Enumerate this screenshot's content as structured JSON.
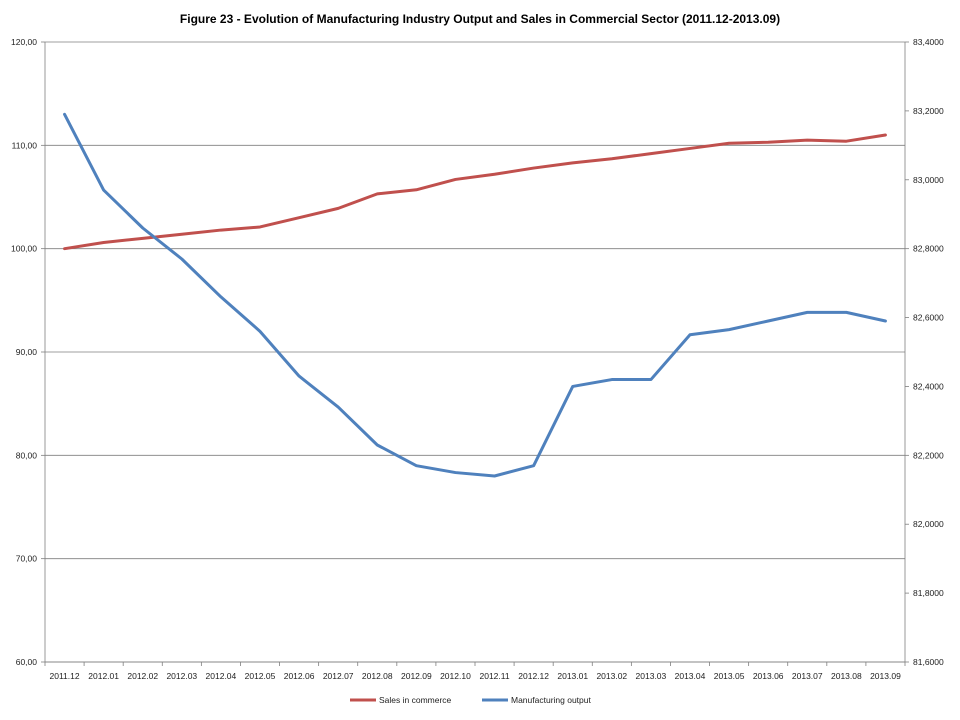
{
  "chart_data": {
    "type": "line",
    "title": "Figure 23 - Evolution of Manufacturing Industry Output and Sales in Commercial Sector (2011.12-2013.09)",
    "categories": [
      "2011.12",
      "2012.01",
      "2012.02",
      "2012.03",
      "2012.04",
      "2012.05",
      "2012.06",
      "2012.07",
      "2012.08",
      "2012.09",
      "2012.10",
      "2012.11",
      "2012.12",
      "2013.01",
      "2013.02",
      "2013.03",
      "2013.04",
      "2013.05",
      "2013.06",
      "2013.07",
      "2013.08",
      "2013.09"
    ],
    "y_left": {
      "ylim": [
        60,
        120
      ],
      "ticks": [
        "60,00",
        "70,00",
        "80,00",
        "90,00",
        "100,00",
        "110,00",
        "120,00"
      ]
    },
    "y_right": {
      "ylim": [
        81.6,
        83.4
      ],
      "ticks": [
        "81,6000",
        "81,8000",
        "82,0000",
        "82,2000",
        "82,4000",
        "82,6000",
        "82,8000",
        "83,0000",
        "83,2000",
        "83,4000"
      ]
    },
    "grid": "horizontal",
    "legend_position": "bottom",
    "series": [
      {
        "name": "Sales in commerce",
        "axis": "left",
        "color": "#C0504D",
        "values": [
          100.0,
          100.6,
          101.0,
          101.4,
          101.8,
          102.1,
          103.0,
          103.9,
          105.3,
          105.7,
          106.7,
          107.2,
          107.8,
          108.3,
          108.7,
          109.2,
          109.7,
          110.2,
          110.3,
          110.5,
          110.4,
          111.0
        ]
      },
      {
        "name": "Manufacturing output",
        "axis": "right",
        "color": "#4F81BD",
        "values": [
          83.19,
          82.97,
          82.86,
          82.77,
          82.66,
          82.56,
          82.43,
          82.34,
          82.23,
          82.17,
          82.15,
          82.14,
          82.17,
          82.4,
          82.42,
          82.42,
          82.55,
          82.565,
          82.59,
          82.615,
          82.615,
          82.59
        ]
      }
    ]
  }
}
